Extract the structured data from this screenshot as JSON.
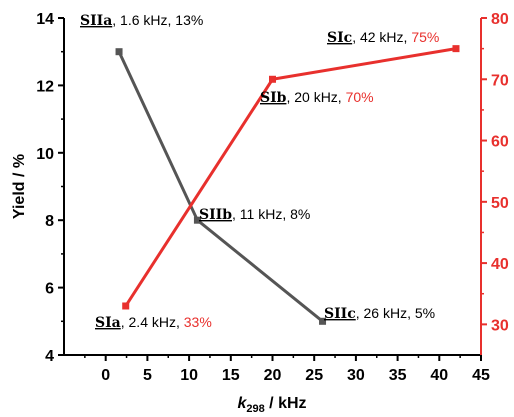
{
  "chart_data": {
    "type": "line",
    "xlabel": {
      "main": "k",
      "sub": "298",
      "rest": " / kHz"
    },
    "ylabel_left": "Yield / %",
    "xlim": [
      -5,
      45
    ],
    "ylim_left": [
      4,
      14
    ],
    "ylim_right": [
      25,
      80
    ],
    "x_ticks": [
      "0",
      "5",
      "10",
      "15",
      "20",
      "25",
      "30",
      "35",
      "40",
      "45"
    ],
    "y_left_ticks": [
      "4",
      "6",
      "8",
      "10",
      "12",
      "14"
    ],
    "y_right_ticks": [
      "30",
      "40",
      "50",
      "60",
      "70",
      "80"
    ],
    "grid": false,
    "series": [
      {
        "axis": "left",
        "color": "#555555",
        "x": [
          1.6,
          11,
          26
        ],
        "y": [
          13,
          8,
          5
        ],
        "labels": [
          {
            "name": "SIIa",
            "rest": ", 1.6 kHz, 13%",
            "pct": ""
          },
          {
            "name": "SIIb",
            "rest": ", 11 kHz, 8%",
            "pct": ""
          },
          {
            "name": "SIIc",
            "rest": ", 26 kHz, 5%",
            "pct": ""
          }
        ]
      },
      {
        "axis": "right",
        "color": "#e8302d",
        "x": [
          2.4,
          20,
          42
        ],
        "y": [
          33,
          70,
          75
        ],
        "labels": [
          {
            "name": "SIa",
            "rest": ", 2.4 kHz, ",
            "pct": "33%"
          },
          {
            "name": "SIb",
            "rest": ", 20 kHz, ",
            "pct": "70%"
          },
          {
            "name": "SIc",
            "rest": ", 42 kHz, ",
            "pct": "75%"
          }
        ]
      }
    ]
  }
}
